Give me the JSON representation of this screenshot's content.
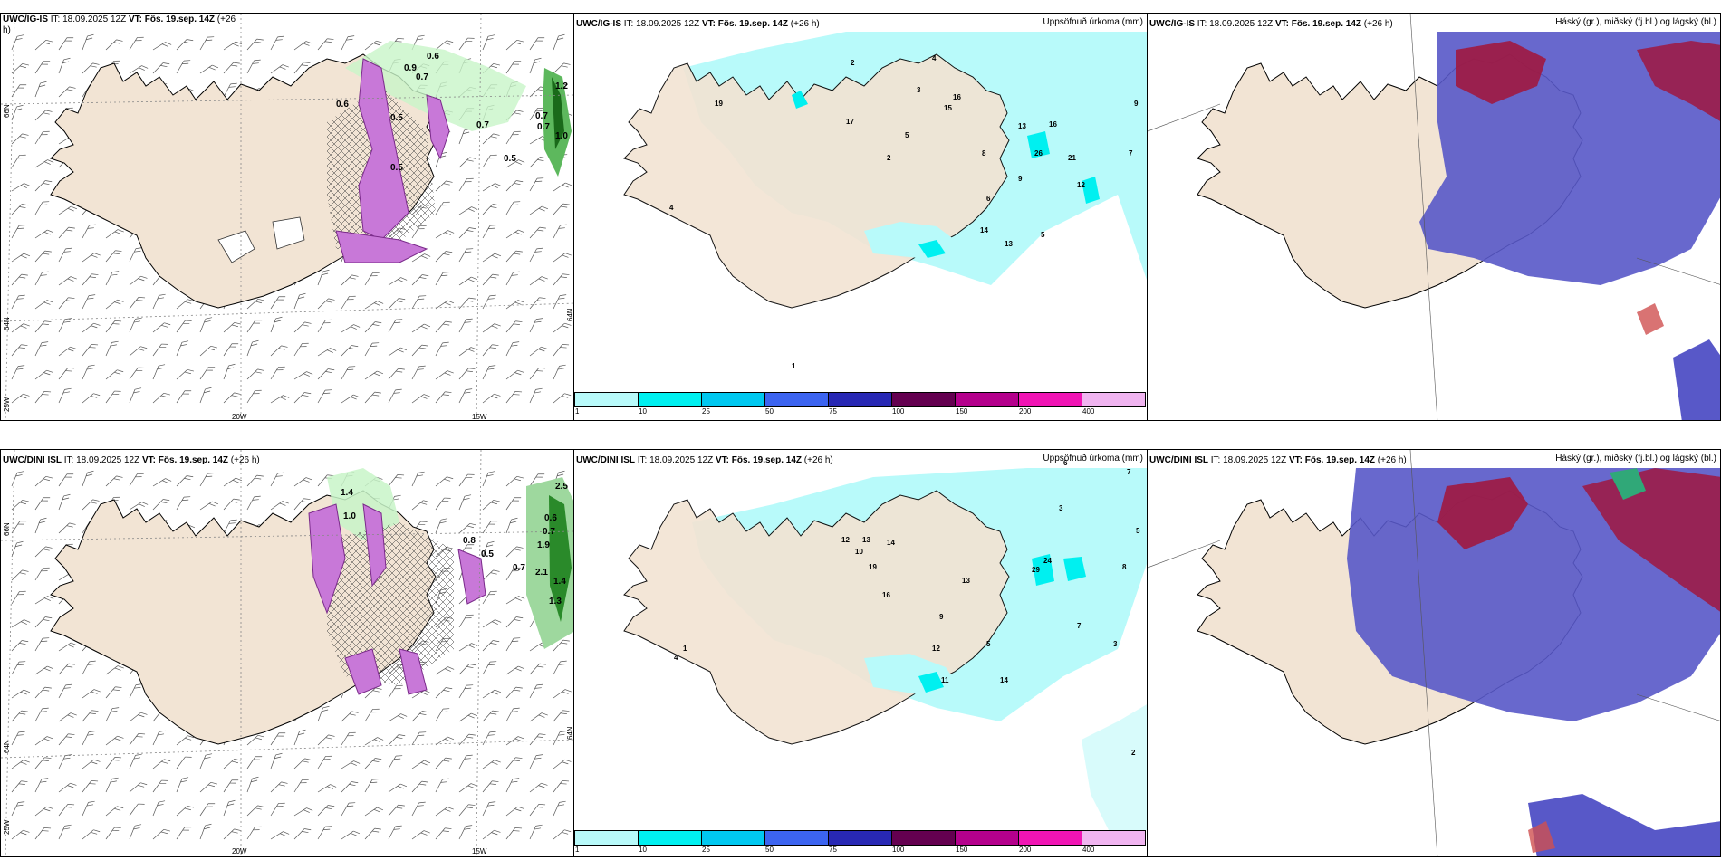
{
  "panels": [
    {
      "model": "UWC/IG-IS",
      "it_label": "IT:",
      "it_value": "18.09.2025 12Z",
      "vt_label": "VT:",
      "vt_value": "Fös. 19.sep. 14Z",
      "lead": "(+26",
      "lead_tail": "h)",
      "type": "wind-precip"
    },
    {
      "model": "UWC/IG-IS",
      "it_label": "IT:",
      "it_value": "18.09.2025 12Z",
      "vt_label": "VT:",
      "vt_value": "Fös. 19.sep. 14Z",
      "lead": "(+26 h)",
      "right_title": "Uppsöfnuð úrkoma (mm)",
      "type": "accum"
    },
    {
      "model": "UWC/IG-IS",
      "it_label": "IT:",
      "it_value": "18.09.2025 12Z",
      "vt_label": "VT:",
      "vt_value": "Fös. 19.sep. 14Z",
      "lead": "(+26 h)",
      "right_title": "Háský (gr.), miðský (fj.bl.) og lágský (bl.)",
      "type": "cloud"
    },
    {
      "model": "UWC/DINI ISL",
      "it_label": "IT:",
      "it_value": "18.09.2025 12Z",
      "vt_label": "VT:",
      "vt_value": "Fös. 19.sep. 14Z",
      "lead": "(+26 h)",
      "type": "wind-precip"
    },
    {
      "model": "UWC/DINI ISL",
      "it_label": "IT:",
      "it_value": "18.09.2025 12Z",
      "vt_label": "VT:",
      "vt_value": "Fös. 19.sep. 14Z",
      "lead": "(+26 h)",
      "right_title": "Uppsöfnuð úrkoma (mm)",
      "type": "accum"
    },
    {
      "model": "UWC/DINI ISL",
      "it_label": "IT:",
      "it_value": "18.09.2025 12Z",
      "vt_label": "VT:",
      "vt_value": "Fös. 19.sep. 14Z",
      "lead": "(+26 h)",
      "right_title": "Háský (gr.), miðský (fj.bl.) og lágský (bl.)",
      "type": "cloud"
    }
  ],
  "axis_labels": {
    "lat_66": "66N",
    "lat_64": "64N",
    "lat_64_right": "64N",
    "lon_25": "25W",
    "lon_20": "20W",
    "lon_15": "15W"
  },
  "colorbar": {
    "ticks": [
      "1",
      "10",
      "25",
      "50",
      "75",
      "100",
      "150",
      "200",
      "400"
    ],
    "colors": [
      "#b8fafa",
      "#00f0f0",
      "#00c8f0",
      "#3c64f0",
      "#2828b4",
      "#640050",
      "#b4008c",
      "#f014b4",
      "#f0b4f0"
    ]
  },
  "precip_values_top": [
    "0.6",
    "0.9",
    "0.7",
    "0.6",
    "0.7",
    "0.5",
    "0.7",
    "0.7",
    "1.0",
    "1.2",
    "0.5",
    "0.5"
  ],
  "precip_values_bottom": [
    "1.4",
    "1.0",
    "0.8",
    "0.7",
    "0.6",
    "1.9",
    "2.1",
    "1.4",
    "1.3",
    "2.5",
    "0.7",
    "0.5"
  ],
  "accum_values_top": [
    "2",
    "4",
    "3",
    "5",
    "2",
    "8",
    "17",
    "19",
    "15",
    "13",
    "16",
    "26",
    "21",
    "16",
    "12",
    "14",
    "13",
    "9",
    "6",
    "4",
    "1",
    "7",
    "9",
    "5"
  ],
  "accum_values_bottom": [
    "6",
    "3",
    "7",
    "12",
    "13",
    "14",
    "10",
    "19",
    "16",
    "24",
    "29",
    "13",
    "11",
    "14",
    "12",
    "9",
    "5",
    "8",
    "3",
    "2",
    "1",
    "4",
    "7",
    "5"
  ]
}
